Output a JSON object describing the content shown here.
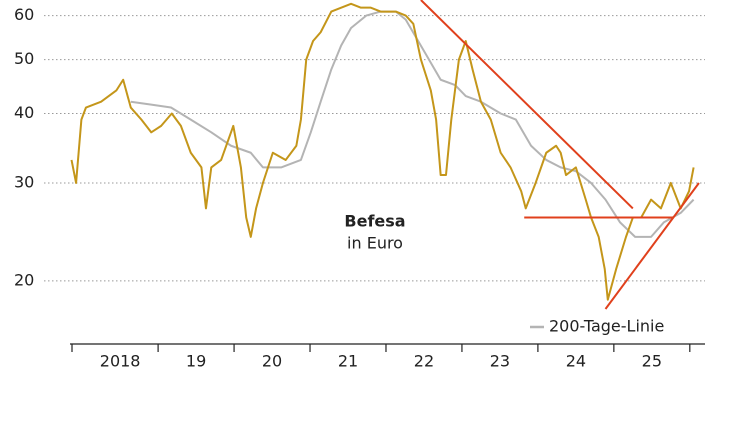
{
  "chart_data": {
    "type": "line",
    "log_scale": true,
    "grid": true,
    "ylim": [
      15.4,
      64
    ],
    "yticks": [
      20,
      30,
      40,
      50,
      60
    ],
    "xlim": [
      2017.84,
      2026.2
    ],
    "xticks": [
      2019,
      2020,
      2021,
      2022,
      2023,
      2024,
      2025,
      2026
    ],
    "xtick_labels": [
      {
        "value": 2018.5,
        "label": "2018"
      },
      {
        "value": 2019.5,
        "label": "19"
      },
      {
        "value": 2020.5,
        "label": "20"
      },
      {
        "value": 2021.5,
        "label": "21"
      },
      {
        "value": 2022.5,
        "label": "22"
      },
      {
        "value": 2023.5,
        "label": "23"
      },
      {
        "value": 2024.5,
        "label": "24"
      },
      {
        "value": 2025.5,
        "label": "25"
      }
    ],
    "annotations": [
      "Befesa",
      "in Euro"
    ],
    "legend": "lower right",
    "series": [
      {
        "color": "#c4961a",
        "x": [
          2017.86,
          2017.92,
          2017.99,
          2018.05,
          2018.25,
          2018.45,
          2018.54,
          2018.64,
          2018.78,
          2018.91,
          2019.04,
          2019.18,
          2019.3,
          2019.43,
          2019.57,
          2019.63,
          2019.7,
          2019.83,
          2019.99,
          2020.09,
          2020.16,
          2020.22,
          2020.29,
          2020.38,
          2020.51,
          2020.68,
          2020.82,
          2020.88,
          2020.95,
          2021.04,
          2021.14,
          2021.28,
          2021.41,
          2021.54,
          2021.67,
          2021.8,
          2021.93,
          2022.13,
          2022.26,
          2022.36,
          2022.46,
          2022.59,
          2022.66,
          2022.72,
          2022.79,
          2022.86,
          2022.96,
          2023.05,
          2023.14,
          2023.25,
          2023.38,
          2023.51,
          2023.64,
          2023.78,
          2023.84,
          2023.97,
          2024.11,
          2024.24,
          2024.3,
          2024.37,
          2024.5,
          2024.63,
          2024.7,
          2024.8,
          2024.88,
          2024.92,
          2025.03,
          2025.16,
          2025.25,
          2025.36,
          2025.49,
          2025.62,
          2025.75,
          2025.88,
          2025.99,
          2026.05
        ],
        "values": [
          33,
          30,
          39,
          41,
          42,
          44,
          46,
          41,
          39,
          37,
          38,
          40,
          38,
          34,
          32,
          27,
          32,
          33,
          38,
          32,
          26,
          24,
          27,
          30,
          34,
          33,
          35,
          39,
          50,
          54,
          56,
          61,
          62,
          63,
          62,
          62,
          61,
          61,
          60,
          58,
          50,
          44,
          39,
          31,
          31,
          39,
          50,
          54,
          48,
          42,
          39,
          34,
          32,
          29,
          27,
          30,
          34,
          35,
          34,
          31,
          32,
          28,
          26,
          24,
          21,
          18.5,
          21,
          24,
          26,
          26,
          28,
          27,
          30,
          27,
          29,
          32
        ]
      },
      {
        "name": "200-Tage-Linie",
        "color": "#b4b4b4",
        "x": [
          2018.64,
          2018.91,
          2019.17,
          2019.43,
          2019.7,
          2019.96,
          2020.22,
          2020.38,
          2020.62,
          2020.88,
          2021.01,
          2021.14,
          2021.28,
          2021.41,
          2021.54,
          2021.74,
          2021.93,
          2022.13,
          2022.26,
          2022.39,
          2022.53,
          2022.72,
          2022.91,
          2023.05,
          2023.25,
          2023.51,
          2023.71,
          2023.91,
          2024.11,
          2024.3,
          2024.5,
          2024.7,
          2024.89,
          2025.08,
          2025.28,
          2025.49,
          2025.66,
          2025.88,
          2026.05
        ],
        "values": [
          42,
          41.5,
          41,
          39,
          37,
          35,
          34,
          32,
          32,
          33,
          37,
          42,
          48,
          53,
          57,
          60,
          61,
          61,
          59,
          55,
          51,
          46,
          45,
          43,
          42,
          40,
          39,
          35,
          33,
          32,
          31.5,
          30,
          28,
          25.5,
          24,
          24,
          25.5,
          26.5,
          28
        ]
      }
    ],
    "trendlines": {
      "color": "#e0401c",
      "lines": [
        {
          "x": [
            2022.46,
            2025.25
          ],
          "y": [
            64,
            27
          ]
        },
        {
          "x": [
            2023.82,
            2025.79
          ],
          "y": [
            26,
            26
          ]
        },
        {
          "x": [
            2024.89,
            2026.12
          ],
          "y": [
            17.8,
            30
          ]
        }
      ]
    }
  }
}
